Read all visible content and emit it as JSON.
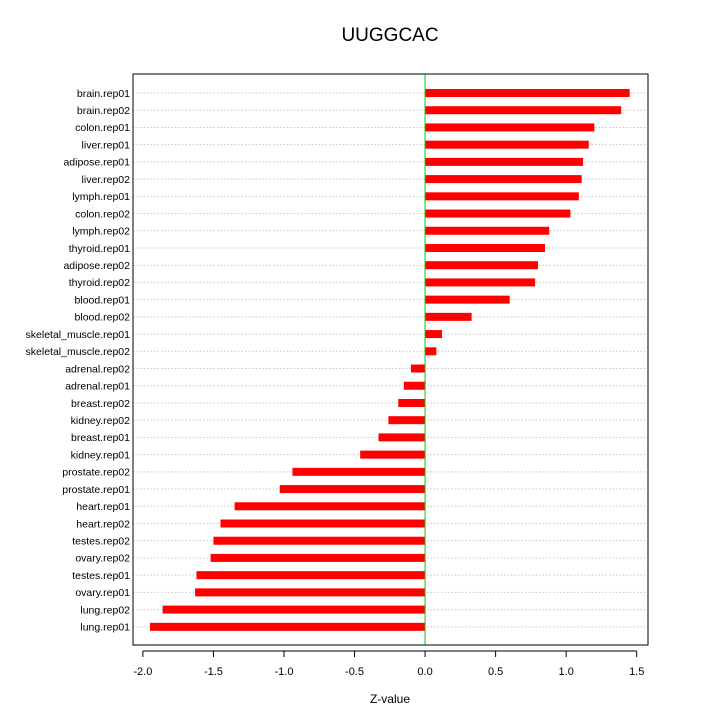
{
  "chart_data": {
    "type": "bar",
    "orientation": "horizontal",
    "title": "UUGGCAC",
    "xlabel": "Z-value",
    "ylabel": "",
    "xlim": [
      -2.07,
      1.58
    ],
    "xticks": [
      -2.0,
      -1.5,
      -1.0,
      -0.5,
      0.0,
      0.5,
      1.0,
      1.5
    ],
    "xtick_labels": [
      "-2.0",
      "-1.5",
      "-1.0",
      "-0.5",
      "0.0",
      "0.5",
      "1.0",
      "1.5"
    ],
    "grid": "horizontal dotted",
    "zero_line_color": "#00cc00",
    "bar_color": "#ff0000",
    "categories": [
      "brain.rep01",
      "brain.rep02",
      "colon.rep01",
      "liver.rep01",
      "adipose.rep01",
      "liver.rep02",
      "lymph.rep01",
      "colon.rep02",
      "lymph.rep02",
      "thyroid.rep01",
      "adipose.rep02",
      "thyroid.rep02",
      "blood.rep01",
      "blood.rep02",
      "skeletal_muscle.rep01",
      "skeletal_muscle.rep02",
      "adrenal.rep02",
      "adrenal.rep01",
      "breast.rep02",
      "kidney.rep02",
      "breast.rep01",
      "kidney.rep01",
      "prostate.rep02",
      "prostate.rep01",
      "heart.rep01",
      "heart.rep02",
      "testes.rep02",
      "ovary.rep02",
      "testes.rep01",
      "ovary.rep01",
      "lung.rep02",
      "lung.rep01"
    ],
    "values": [
      1.45,
      1.39,
      1.2,
      1.16,
      1.12,
      1.11,
      1.09,
      1.03,
      0.88,
      0.85,
      0.8,
      0.78,
      0.6,
      0.33,
      0.12,
      0.08,
      -0.1,
      -0.15,
      -0.19,
      -0.26,
      -0.33,
      -0.46,
      -0.94,
      -1.03,
      -1.35,
      -1.45,
      -1.5,
      -1.52,
      -1.62,
      -1.63,
      -1.86,
      -1.95
    ]
  }
}
